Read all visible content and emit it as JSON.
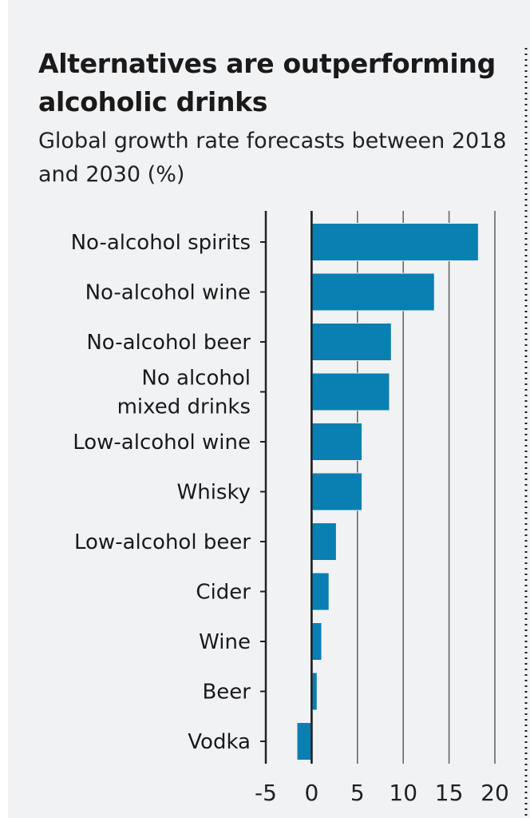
{
  "chart_data": {
    "type": "bar",
    "orientation": "horizontal",
    "title": "Alternatives are outperforming alcoholic drinks",
    "subtitle": "Global growth rate forecasts between 2018 and 2030 (%)",
    "categories": [
      [
        "No-alcohol spirits"
      ],
      [
        "No-alcohol wine"
      ],
      [
        "No-alcohol beer"
      ],
      [
        "No alcohol",
        "mixed drinks"
      ],
      [
        "Low-alcohol wine"
      ],
      [
        "Whisky"
      ],
      [
        "Low-alcohol beer"
      ],
      [
        "Cider"
      ],
      [
        "Wine"
      ],
      [
        "Beer"
      ],
      [
        "Vodka"
      ]
    ],
    "values": [
      18.2,
      13.4,
      8.7,
      8.5,
      5.5,
      5.5,
      2.7,
      1.9,
      1.1,
      0.6,
      -1.6
    ],
    "xlim": [
      -5,
      20
    ],
    "xticks": [
      "-5",
      "0",
      "5",
      "10",
      "15",
      "20"
    ],
    "xtick_values": [
      -5,
      0,
      5,
      10,
      15,
      20
    ],
    "grid": true,
    "bar_color": "#0a7fb1"
  }
}
